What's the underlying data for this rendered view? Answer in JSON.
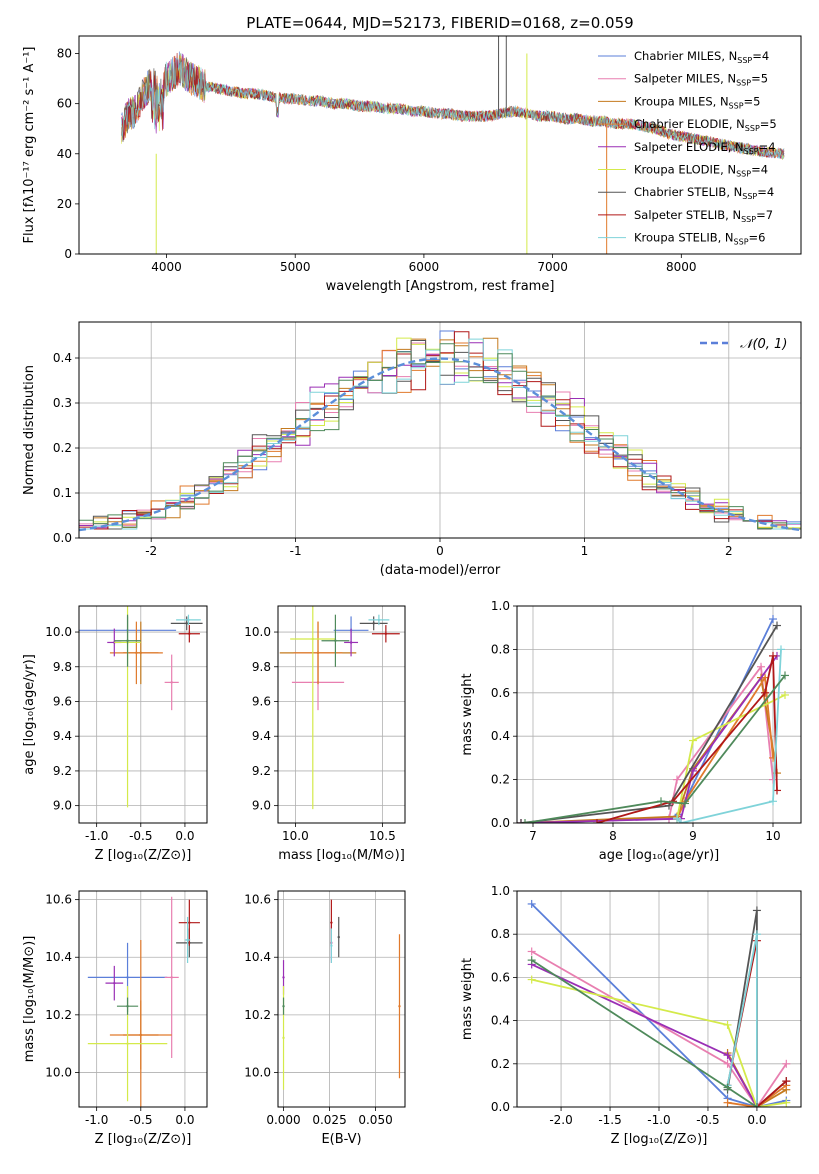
{
  "figure": {
    "title": "PLATE=0644, MJD=52173, FIBERID=0168, z=0.059"
  },
  "colors": {
    "Chabrier MILES": "#5b7fd9",
    "Salpeter MILES": "#e87fb0",
    "Kroupa MILES": "#c47a1e",
    "Chabrier ELODIE": "#e07a2c",
    "Salpeter ELODIE": "#9a2fb5",
    "Kroupa ELODIE": "#d4ea4a",
    "Chabrier STELIB": "#555555",
    "Salpeter STELIB": "#b01818",
    "Kroupa STELIB": "#7fd3d9",
    "Extra": "#4f8a5b"
  },
  "chart_data": [
    {
      "id": "spectrum",
      "type": "line",
      "title": "PLATE=0644, MJD=52173, FIBERID=0168, z=0.059",
      "xlabel": "wavelength [Angstrom, rest frame]",
      "ylabel": "Flux [fλ10⁻¹⁷ erg cm⁻² s⁻¹ A⁻¹]",
      "xlim": [
        3320,
        8930
      ],
      "ylim": [
        0,
        87
      ],
      "xticks": [
        4000,
        5000,
        6000,
        7000,
        8000
      ],
      "yticks": [
        0,
        20,
        40,
        60,
        80
      ],
      "legend_position": "top-right",
      "legend": [
        {
          "label": "Chabrier MILES, N",
          "sub": "SSP",
          "suffix": "=4",
          "color": "#5b7fd9"
        },
        {
          "label": "Salpeter MILES, N",
          "sub": "SSP",
          "suffix": "=5",
          "color": "#e87fb0"
        },
        {
          "label": "Kroupa MILES, N",
          "sub": "SSP",
          "suffix": "=5",
          "color": "#c47a1e"
        },
        {
          "label": "Chabrier ELODIE, N",
          "sub": "SSP",
          "suffix": "=5",
          "color": "#e07a2c"
        },
        {
          "label": "Salpeter ELODIE, N",
          "sub": "SSP",
          "suffix": "=4",
          "color": "#9a2fb5"
        },
        {
          "label": "Kroupa ELODIE, N",
          "sub": "SSP",
          "suffix": "=4",
          "color": "#d4ea4a"
        },
        {
          "label": "Chabrier STELIB, N",
          "sub": "SSP",
          "suffix": "=4",
          "color": "#555555"
        },
        {
          "label": "Salpeter STELIB, N",
          "sub": "SSP",
          "suffix": "=7",
          "color": "#b01818"
        },
        {
          "label": "Kroupa STELIB, N",
          "sub": "SSP",
          "suffix": "=6",
          "color": "#7fd3d9"
        }
      ],
      "series_shape": {
        "x": [
          3650,
          3700,
          3750,
          3800,
          3850,
          3900,
          3950,
          4000,
          4050,
          4100,
          4200,
          4300,
          4400,
          4500,
          4600,
          4700,
          4800,
          4900,
          5000,
          5100,
          5200,
          5300,
          5400,
          5500,
          5600,
          5700,
          5800,
          5900,
          6000,
          6100,
          6200,
          6300,
          6400,
          6500,
          6600,
          6700,
          6800,
          6900,
          7000,
          7100,
          7200,
          7300,
          7400,
          7500,
          7600,
          7700,
          7800,
          7900,
          8000,
          8100,
          8200,
          8300,
          8400,
          8500,
          8600,
          8800
        ],
        "y": [
          50,
          55,
          57,
          62,
          66,
          68,
          65,
          70,
          72,
          74,
          70,
          67,
          66,
          65,
          64,
          64,
          63,
          62,
          62,
          61,
          61,
          60,
          60,
          59,
          59,
          58,
          58,
          57,
          57,
          56,
          56,
          55,
          55,
          55,
          56,
          57,
          56,
          55,
          55,
          54,
          54,
          53,
          53,
          52,
          52,
          51,
          50,
          48,
          47,
          46,
          45,
          44,
          43,
          42,
          41,
          40
        ]
      },
      "line_annotations": [
        {
          "x": 3920,
          "y_min": 0,
          "y_max": 40,
          "color": "#d4ea4a"
        },
        {
          "x": 6800,
          "y_min": 0,
          "y_max": 80,
          "color": "#d4ea4a"
        },
        {
          "x": 7420,
          "y_min": 0,
          "y_max": 52,
          "color": "#e07a2c"
        },
        {
          "x": 6580,
          "y_min": 55,
          "y_max": 87,
          "color": "#555555"
        },
        {
          "x": 6640,
          "y_min": 55,
          "y_max": 87,
          "color": "#555555"
        }
      ]
    },
    {
      "id": "residuals",
      "type": "line",
      "xlabel": "(data-model)/error",
      "ylabel": "Normed distribution",
      "xlim": [
        -2.5,
        2.5
      ],
      "ylim": [
        0,
        0.48
      ],
      "xticks": [
        -2,
        -1,
        0,
        1,
        2
      ],
      "yticks": [
        0.0,
        0.1,
        0.2,
        0.3,
        0.4
      ],
      "grid": true,
      "legend_position": "top-right",
      "legend": [
        {
          "label": "𝒩(0, 1)",
          "color": "#5b7fd9",
          "dashed": true
        }
      ],
      "curve": {
        "name": "𝒩(0, 1)",
        "mu": 0,
        "sigma": 1
      }
    },
    {
      "id": "age_vs_Z",
      "type": "scatter",
      "xlabel": "Z [log₁₀(Z/Z⊙)]",
      "ylabel": "age  [log₁₀(age/yr)]",
      "xlim": [
        -1.2,
        0.25
      ],
      "ylim": [
        8.9,
        10.15
      ],
      "xticks": [
        -1.0,
        -0.5,
        0.0
      ],
      "yticks": [
        9.0,
        9.2,
        9.4,
        9.6,
        9.8,
        10.0
      ],
      "grid": true,
      "points": [
        {
          "x": -0.65,
          "y": 10.01,
          "xerr": 0.55,
          "yerr": 0.08,
          "color": "#5b7fd9"
        },
        {
          "x": -0.15,
          "y": 9.71,
          "xerr": 0.08,
          "yerr": 0.16,
          "color": "#e87fb0"
        },
        {
          "x": -0.5,
          "y": 9.88,
          "xerr": 0.2,
          "yerr": 0.18,
          "color": "#c47a1e"
        },
        {
          "x": -0.55,
          "y": 9.88,
          "xerr": 0.3,
          "yerr": 0.18,
          "color": "#e07a2c"
        },
        {
          "x": -0.8,
          "y": 9.94,
          "xerr": 0.08,
          "yerr": 0.08,
          "color": "#9a2fb5"
        },
        {
          "x": -0.65,
          "y": 9.94,
          "xerr": 0.15,
          "yerr": 0.95,
          "color": "#d4ea4a"
        },
        {
          "x": 0.02,
          "y": 10.05,
          "xerr": 0.18,
          "yerr": 0.04,
          "color": "#555555"
        },
        {
          "x": 0.05,
          "y": 9.99,
          "xerr": 0.12,
          "yerr": 0.05,
          "color": "#b01818"
        },
        {
          "x": 0.04,
          "y": 10.07,
          "xerr": 0.14,
          "yerr": 0.03,
          "color": "#7fd3d9"
        },
        {
          "x": -0.65,
          "y": 9.95,
          "xerr": 0.15,
          "yerr": 0.15,
          "color": "#4f8a5b"
        }
      ]
    },
    {
      "id": "age_vs_mass",
      "type": "scatter",
      "xlabel": "mass [log₁₀(M/M⊙)]",
      "ylabel": "",
      "xlim": [
        9.9,
        10.63
      ],
      "ylim": [
        8.9,
        10.15
      ],
      "xticks": [
        10.0,
        10.5
      ],
      "yticks": [
        9.0,
        9.2,
        9.4,
        9.6,
        9.8,
        10.0
      ],
      "grid": true,
      "points": [
        {
          "x": 10.32,
          "y": 10.01,
          "xerr": 0.1,
          "yerr": 0.08,
          "color": "#5b7fd9"
        },
        {
          "x": 10.13,
          "y": 9.71,
          "xerr": 0.15,
          "yerr": 0.16,
          "color": "#e87fb0"
        },
        {
          "x": 10.13,
          "y": 9.88,
          "xerr": 0.22,
          "yerr": 0.18,
          "color": "#c47a1e"
        },
        {
          "x": 10.13,
          "y": 9.88,
          "xerr": 0.14,
          "yerr": 0.18,
          "color": "#e07a2c"
        },
        {
          "x": 10.32,
          "y": 9.94,
          "xerr": 0.04,
          "yerr": 0.08,
          "color": "#9a2fb5"
        },
        {
          "x": 10.1,
          "y": 9.96,
          "xerr": 0.13,
          "yerr": 0.98,
          "color": "#d4ea4a"
        },
        {
          "x": 10.45,
          "y": 10.05,
          "xerr": 0.08,
          "yerr": 0.04,
          "color": "#555555"
        },
        {
          "x": 10.52,
          "y": 9.99,
          "xerr": 0.08,
          "yerr": 0.05,
          "color": "#b01818"
        },
        {
          "x": 10.48,
          "y": 10.07,
          "xerr": 0.06,
          "yerr": 0.03,
          "color": "#7fd3d9"
        },
        {
          "x": 10.23,
          "y": 9.95,
          "xerr": 0.08,
          "yerr": 0.15,
          "color": "#4f8a5b"
        }
      ]
    },
    {
      "id": "massweight_vs_age",
      "type": "line",
      "xlabel": "age  [log₁₀(age/yr)]",
      "ylabel": "mass weight",
      "xlim": [
        6.8,
        10.35
      ],
      "ylim": [
        0,
        1.0
      ],
      "xticks": [
        7,
        8,
        9,
        10
      ],
      "yticks": [
        0.0,
        0.2,
        0.4,
        0.6,
        0.8,
        1.0
      ],
      "grid": true,
      "series": [
        {
          "color": "#5b7fd9",
          "x": [
            6.85,
            8.7,
            8.82,
            10.0
          ],
          "y": [
            0.0,
            0.02,
            0.04,
            0.94
          ]
        },
        {
          "color": "#e87fb0",
          "x": [
            6.85,
            8.7,
            8.8,
            9.85,
            10.0
          ],
          "y": [
            0.0,
            0.02,
            0.2,
            0.72,
            0.2
          ]
        },
        {
          "color": "#c47a1e",
          "x": [
            6.85,
            8.8,
            9.0,
            9.85,
            10.05
          ],
          "y": [
            0.0,
            0.03,
            0.25,
            0.67,
            0.23
          ]
        },
        {
          "color": "#e07a2c",
          "x": [
            8.8,
            8.9,
            9.9,
            10.0
          ],
          "y": [
            0.02,
            0.1,
            0.67,
            0.3
          ]
        },
        {
          "color": "#9a2fb5",
          "x": [
            6.85,
            8.85,
            9.0,
            10.05
          ],
          "y": [
            0.0,
            0.02,
            0.24,
            0.77
          ]
        },
        {
          "color": "#d4ea4a",
          "x": [
            8.8,
            9.0,
            10.15
          ],
          "y": [
            0.02,
            0.38,
            0.59
          ]
        },
        {
          "color": "#555555",
          "x": [
            6.85,
            8.7,
            10.05
          ],
          "y": [
            0.0,
            0.08,
            0.91
          ]
        },
        {
          "color": "#b01818",
          "x": [
            7.8,
            8.75,
            9.9,
            10.0,
            10.05
          ],
          "y": [
            0.0,
            0.1,
            0.6,
            0.77,
            0.15
          ]
        },
        {
          "color": "#7fd3d9",
          "x": [
            8.8,
            8.85,
            10.0,
            10.1
          ],
          "y": [
            0.02,
            0.0,
            0.1,
            0.8
          ]
        },
        {
          "color": "#4f8a5b",
          "x": [
            6.9,
            8.6,
            8.9,
            10.15
          ],
          "y": [
            0.0,
            0.1,
            0.09,
            0.68
          ]
        }
      ]
    },
    {
      "id": "mass_vs_Z",
      "type": "scatter",
      "xlabel": "Z [log₁₀(Z/Z⊙)]",
      "ylabel": "mass [log₁₀(M/M⊙)]",
      "xlim": [
        -1.2,
        0.25
      ],
      "ylim": [
        9.88,
        10.63
      ],
      "xticks": [
        -1.0,
        -0.5,
        0.0
      ],
      "yticks": [
        10.0,
        10.2,
        10.4,
        10.6
      ],
      "grid": true,
      "points": [
        {
          "x": -0.65,
          "y": 10.33,
          "xerr": 0.45,
          "yerr": 0.12,
          "color": "#5b7fd9"
        },
        {
          "x": -0.15,
          "y": 10.33,
          "xerr": 0.08,
          "yerr": 0.28,
          "color": "#e87fb0"
        },
        {
          "x": -0.5,
          "y": 10.13,
          "xerr": 0.2,
          "yerr": 0.12,
          "color": "#c47a1e"
        },
        {
          "x": -0.5,
          "y": 10.13,
          "xerr": 0.35,
          "yerr": 0.33,
          "color": "#e07a2c"
        },
        {
          "x": -0.8,
          "y": 10.31,
          "xerr": 0.1,
          "yerr": 0.06,
          "color": "#9a2fb5"
        },
        {
          "x": -0.65,
          "y": 10.1,
          "xerr": 0.45,
          "yerr": 0.2,
          "color": "#d4ea4a"
        },
        {
          "x": 0.05,
          "y": 10.45,
          "xerr": 0.15,
          "yerr": 0.05,
          "color": "#555555"
        },
        {
          "x": 0.05,
          "y": 10.52,
          "xerr": 0.12,
          "yerr": 0.08,
          "color": "#b01818"
        },
        {
          "x": 0.03,
          "y": 10.46,
          "xerr": 0.03,
          "yerr": 0.08,
          "color": "#7fd3d9"
        },
        {
          "x": -0.65,
          "y": 10.23,
          "xerr": 0.12,
          "yerr": 0.03,
          "color": "#4f8a5b"
        }
      ]
    },
    {
      "id": "mass_vs_ebv",
      "type": "scatter",
      "xlabel": "E(B-V)",
      "ylabel": "",
      "xlim": [
        -0.003,
        0.066
      ],
      "ylim": [
        9.88,
        10.63
      ],
      "xticks": [
        0.0,
        0.025,
        0.05
      ],
      "xticklabels": [
        "0.000",
        "0.025",
        "0.050"
      ],
      "yticks": [
        10.0,
        10.2,
        10.4,
        10.6
      ],
      "grid": true,
      "points": [
        {
          "x": 0.0,
          "y": 10.33,
          "xerr": 0,
          "yerr": 0.06,
          "color": "#9a2fb5"
        },
        {
          "x": 0.0,
          "y": 10.12,
          "xerr": 0,
          "yerr": 0.18,
          "color": "#d4ea4a"
        },
        {
          "x": 0.0,
          "y": 10.23,
          "xerr": 0,
          "yerr": 0.03,
          "color": "#4f8a5b"
        },
        {
          "x": 0.026,
          "y": 10.45,
          "xerr": 0,
          "yerr": 0.06,
          "color": "#5b7fd9"
        },
        {
          "x": 0.026,
          "y": 10.45,
          "xerr": 0,
          "yerr": 0.07,
          "color": "#e87fb0"
        },
        {
          "x": 0.026,
          "y": 10.52,
          "xerr": 0,
          "yerr": 0.08,
          "color": "#b01818"
        },
        {
          "x": 0.026,
          "y": 10.44,
          "xerr": 0,
          "yerr": 0.06,
          "color": "#7fd3d9"
        },
        {
          "x": 0.03,
          "y": 10.47,
          "xerr": 0,
          "yerr": 0.07,
          "color": "#555555"
        },
        {
          "x": 0.063,
          "y": 10.23,
          "xerr": 0,
          "yerr": 0.25,
          "color": "#e07a2c"
        }
      ]
    },
    {
      "id": "massweight_vs_Z",
      "type": "line",
      "xlabel": "Z [log₁₀(Z/Z⊙)]",
      "ylabel": "mass weight",
      "xlim": [
        -2.45,
        0.45
      ],
      "ylim": [
        0,
        1.0
      ],
      "xticks": [
        -2.0,
        -1.5,
        -1.0,
        -0.5,
        0.0
      ],
      "yticks": [
        0.0,
        0.2,
        0.4,
        0.6,
        0.8,
        1.0
      ],
      "grid": true,
      "series": [
        {
          "color": "#5b7fd9",
          "x": [
            -2.3,
            -0.3,
            0.0,
            0.3
          ],
          "y": [
            0.94,
            0.04,
            0.0,
            0.03
          ]
        },
        {
          "color": "#e87fb0",
          "x": [
            -2.3,
            -0.3,
            0.0,
            0.3
          ],
          "y": [
            0.72,
            0.2,
            0.0,
            0.2
          ]
        },
        {
          "color": "#c47a1e",
          "x": [
            -0.3,
            0.0,
            0.3
          ],
          "y": [
            0.25,
            0.0,
            0.08
          ]
        },
        {
          "color": "#e07a2c",
          "x": [
            -0.3,
            0.0,
            0.3
          ],
          "y": [
            0.02,
            0.0,
            0.1
          ]
        },
        {
          "color": "#9a2fb5",
          "x": [
            -2.3,
            -0.3,
            0.0
          ],
          "y": [
            0.66,
            0.24,
            0.0
          ]
        },
        {
          "color": "#d4ea4a",
          "x": [
            -2.3,
            -0.3,
            0.0,
            0.3
          ],
          "y": [
            0.59,
            0.38,
            0.0,
            0.02
          ]
        },
        {
          "color": "#555555",
          "x": [
            -0.3,
            0.0,
            0.0,
            0.3
          ],
          "y": [
            0.08,
            0.91,
            0.0,
            0.12
          ]
        },
        {
          "color": "#b01818",
          "x": [
            -0.3,
            0.0,
            0.0,
            0.3
          ],
          "y": [
            0.1,
            0.77,
            0.0,
            0.12
          ]
        },
        {
          "color": "#7fd3d9",
          "x": [
            -0.3,
            0.0,
            0.0
          ],
          "y": [
            0.1,
            0.8,
            0.0
          ]
        },
        {
          "color": "#4f8a5b",
          "x": [
            -2.3,
            -0.3,
            0.0
          ],
          "y": [
            0.68,
            0.09,
            0.0
          ]
        }
      ]
    }
  ]
}
